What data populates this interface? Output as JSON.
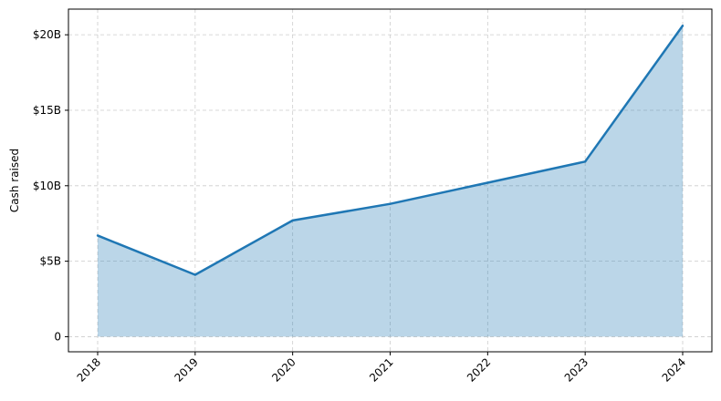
{
  "chart_data": {
    "type": "area",
    "title": "",
    "xlabel": "",
    "ylabel": "Cash raised",
    "x": [
      "2018",
      "2019",
      "2020",
      "2021",
      "2022",
      "2023",
      "2024"
    ],
    "series": [
      {
        "values": [
          6.7,
          4.1,
          7.7,
          8.8,
          10.2,
          11.6,
          20.6
        ]
      }
    ],
    "ylim": [
      -1.0,
      21.7
    ],
    "y_unit": "billion USD",
    "yticks": [
      {
        "value": 0,
        "label": "0"
      },
      {
        "value": 5,
        "label": "$5B"
      },
      {
        "value": 10,
        "label": "$10B"
      },
      {
        "value": 15,
        "label": "$15B"
      },
      {
        "value": 20,
        "label": "$20B"
      }
    ],
    "grid": true,
    "legend": "none",
    "colors": {
      "line": "#1f77b4",
      "fill": "#1f77b4",
      "grid": "#cccccc"
    }
  }
}
